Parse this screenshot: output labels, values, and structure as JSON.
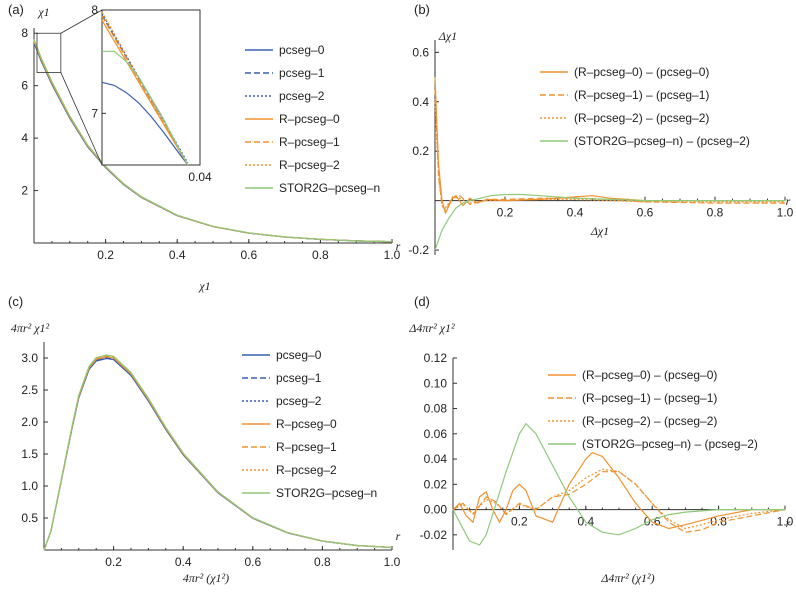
{
  "chart_data": [
    {
      "id": "a",
      "panel_label": "(a)",
      "type": "line",
      "ylabel": "χ1",
      "xlabel": "χ1",
      "xaxis_end_label": "r",
      "xlim": [
        0,
        1.0
      ],
      "ylim": [
        0,
        8.2
      ],
      "xticks": [
        "0.2",
        "0.4",
        "0.6",
        "0.8",
        "1.0"
      ],
      "yticks": [
        "2",
        "4",
        "6",
        "8"
      ],
      "series": [
        {
          "name": "pcseg–0",
          "color": "#3a5fb0",
          "dash": "solid"
        },
        {
          "name": "pcseg–1",
          "color": "#3a5fb0",
          "dash": "dashed"
        },
        {
          "name": "pcseg–2",
          "color": "#3a5fb0",
          "dash": "dotted"
        },
        {
          "name": "R–pcseg–0",
          "color": "#f0922e",
          "dash": "solid"
        },
        {
          "name": "R–pcseg–1",
          "color": "#f0922e",
          "dash": "dashed"
        },
        {
          "name": "R–pcseg–2",
          "color": "#f0922e",
          "dash": "dotted"
        },
        {
          "name": "STOR2G–pcseg–n",
          "color": "#8fc97a",
          "dash": "solid"
        }
      ],
      "curve": {
        "x": [
          0,
          0.02,
          0.05,
          0.1,
          0.15,
          0.2,
          0.25,
          0.3,
          0.4,
          0.5,
          0.6,
          0.7,
          0.8,
          0.9,
          1.0
        ],
        "y": [
          7.7,
          7.0,
          6.1,
          4.8,
          3.7,
          2.9,
          2.25,
          1.75,
          1.05,
          0.63,
          0.38,
          0.23,
          0.14,
          0.08,
          0.05
        ]
      },
      "inset": {
        "xlim": [
          0,
          0.04
        ],
        "ylim": [
          6.5,
          8.0
        ],
        "xticks": [
          "0.04"
        ],
        "yticks": [
          "7",
          "8"
        ],
        "lines": [
          {
            "series": "pcseg–0",
            "x": [
              0,
              0.005,
              0.01,
              0.015,
              0.02,
              0.025,
              0.03,
              0.035
            ],
            "y": [
              7.3,
              7.27,
              7.2,
              7.1,
              6.97,
              6.82,
              6.66,
              6.5
            ]
          },
          {
            "series": "pcseg–1",
            "x": [
              0,
              0.035
            ],
            "y": [
              7.95,
              6.5
            ]
          },
          {
            "series": "pcseg–2",
            "x": [
              0,
              0.035
            ],
            "y": [
              7.97,
              6.52
            ]
          },
          {
            "series": "R–pcseg–0",
            "x": [
              0,
              0.035
            ],
            "y": [
              7.9,
              6.5
            ]
          },
          {
            "series": "R–pcseg–1",
            "x": [
              0,
              0.035
            ],
            "y": [
              7.94,
              6.5
            ]
          },
          {
            "series": "R–pcseg–2",
            "x": [
              0,
              0.035
            ],
            "y": [
              7.98,
              6.5
            ]
          },
          {
            "series": "STOR2G–pcseg–n",
            "x": [
              0,
              0.005,
              0.01,
              0.015,
              0.02,
              0.025,
              0.03,
              0.035
            ],
            "y": [
              7.6,
              7.6,
              7.5,
              7.35,
              7.15,
              6.95,
              6.72,
              6.5
            ]
          }
        ]
      }
    },
    {
      "id": "b",
      "panel_label": "(b)",
      "type": "line",
      "ylabel": "Δχ1",
      "xlabel": "Δχ1",
      "xaxis_end_label": "r",
      "xlim": [
        0,
        1.0
      ],
      "ylim": [
        -0.22,
        0.65
      ],
      "xticks": [
        "0.2",
        "0.4",
        "0.6",
        "0.8",
        "1.0"
      ],
      "yticks": [
        "-0.2",
        "0.2",
        "0.4",
        "0.6"
      ],
      "series": [
        {
          "name": "(R–pcseg–0) – (pcseg–0)",
          "color": "#f0922e",
          "dash": "solid",
          "x": [
            0,
            0.01,
            0.02,
            0.03,
            0.04,
            0.05,
            0.06,
            0.08,
            0.1,
            0.12,
            0.15,
            0.2,
            0.3,
            0.4,
            0.45,
            0.5,
            0.6,
            0.8,
            1.0
          ],
          "y": [
            0.5,
            0.15,
            0.0,
            -0.05,
            -0.02,
            0.01,
            0.02,
            -0.02,
            0.01,
            -0.01,
            0.005,
            0.0,
            0.005,
            0.015,
            0.02,
            0.01,
            0.0,
            0.0,
            0.0
          ]
        },
        {
          "name": "(R–pcseg–1) – (pcseg–1)",
          "color": "#f0922e",
          "dash": "dashed",
          "x": [
            0,
            0.01,
            0.02,
            0.03,
            0.05,
            0.07,
            0.1,
            0.15,
            0.2,
            0.3,
            0.4,
            0.5,
            0.6,
            0.8,
            1.0
          ],
          "y": [
            0.45,
            0.1,
            -0.02,
            -0.04,
            0.01,
            0.02,
            -0.015,
            0.005,
            0.005,
            0.01,
            0.01,
            0.005,
            -0.005,
            -0.01,
            -0.01
          ]
        },
        {
          "name": "(R–pcseg–2) – (pcseg–2)",
          "color": "#f0922e",
          "dash": "dotted",
          "x": [
            0,
            0.01,
            0.02,
            0.03,
            0.05,
            0.07,
            0.1,
            0.15,
            0.2,
            0.3,
            0.4,
            0.5,
            0.6,
            0.8,
            1.0
          ],
          "y": [
            0.4,
            0.1,
            -0.02,
            -0.03,
            0.015,
            0.01,
            -0.01,
            0.0,
            0.0,
            0.005,
            0.005,
            0.0,
            -0.005,
            -0.005,
            -0.005
          ]
        },
        {
          "name": "(STOR2G–pcseg–n) – (pcseg–2)",
          "color": "#8fc97a",
          "dash": "solid",
          "x": [
            0,
            0.02,
            0.04,
            0.06,
            0.08,
            0.1,
            0.13,
            0.16,
            0.2,
            0.25,
            0.3,
            0.4,
            0.5,
            0.6,
            0.8,
            1.0
          ],
          "y": [
            -0.2,
            -0.12,
            -0.07,
            -0.03,
            -0.01,
            0.0,
            0.01,
            0.02,
            0.025,
            0.025,
            0.02,
            0.01,
            0.005,
            0.0,
            0.0,
            0.0
          ]
        }
      ]
    },
    {
      "id": "c",
      "panel_label": "(c)",
      "type": "line",
      "ylabel": "4πr² χ1²",
      "xlabel": "4πr² (χ1²)",
      "xaxis_end_label": "r",
      "xlim": [
        0,
        1.0
      ],
      "ylim": [
        0,
        3.25
      ],
      "xticks": [
        "0.2",
        "0.4",
        "0.6",
        "0.8",
        "1.0"
      ],
      "yticks": [
        "0.5",
        "1.0",
        "1.5",
        "2.0",
        "2.5",
        "3.0"
      ],
      "series": [
        {
          "name": "pcseg–0",
          "color": "#3a5fb0",
          "dash": "solid"
        },
        {
          "name": "pcseg–1",
          "color": "#3a5fb0",
          "dash": "dashed"
        },
        {
          "name": "pcseg–2",
          "color": "#3a5fb0",
          "dash": "dotted"
        },
        {
          "name": "R–pcseg–0",
          "color": "#f0922e",
          "dash": "solid"
        },
        {
          "name": "R–pcseg–1",
          "color": "#f0922e",
          "dash": "dashed"
        },
        {
          "name": "R–pcseg–2",
          "color": "#f0922e",
          "dash": "dotted"
        },
        {
          "name": "STOR2G–pcseg–n",
          "color": "#8fc97a",
          "dash": "solid"
        }
      ],
      "curve": {
        "x": [
          0,
          0.02,
          0.05,
          0.08,
          0.1,
          0.13,
          0.15,
          0.18,
          0.2,
          0.25,
          0.3,
          0.35,
          0.4,
          0.5,
          0.6,
          0.7,
          0.8,
          0.9,
          1.0
        ],
        "y": [
          0,
          0.3,
          1.1,
          1.9,
          2.4,
          2.85,
          2.98,
          3.02,
          3.0,
          2.75,
          2.35,
          1.9,
          1.5,
          0.9,
          0.5,
          0.27,
          0.14,
          0.07,
          0.04
        ]
      }
    },
    {
      "id": "d",
      "panel_label": "(d)",
      "type": "line",
      "ylabel": "Δ4πr² χ1²",
      "xlabel": "Δ4πr² (χ1²)",
      "xaxis_end_label": "r",
      "xlim": [
        0,
        1.0
      ],
      "ylim": [
        -0.032,
        0.12
      ],
      "xticks": [
        "0.2",
        "0.4",
        "0.6",
        "0.8",
        "1.0"
      ],
      "yticks": [
        "-0.02",
        "0.00",
        "0.02",
        "0.04",
        "0.06",
        "0.08",
        "0.10",
        "0.12"
      ],
      "series": [
        {
          "name": "(R–pcseg–0) – (pcseg–0)",
          "color": "#f0922e",
          "dash": "solid",
          "x": [
            0,
            0.02,
            0.04,
            0.06,
            0.08,
            0.1,
            0.12,
            0.14,
            0.16,
            0.18,
            0.2,
            0.22,
            0.25,
            0.3,
            0.35,
            0.4,
            0.42,
            0.45,
            0.5,
            0.55,
            0.6,
            0.65,
            0.7,
            0.8,
            0.9,
            1.0
          ],
          "y": [
            0,
            0.005,
            -0.005,
            -0.01,
            0.01,
            0.014,
            0.0,
            -0.01,
            0.0,
            0.015,
            0.02,
            0.015,
            -0.005,
            -0.01,
            0.02,
            0.04,
            0.045,
            0.042,
            0.025,
            0.005,
            -0.01,
            -0.015,
            -0.012,
            -0.005,
            0.0,
            0.0
          ]
        },
        {
          "name": "(R–pcseg–1) – (pcseg–1)",
          "color": "#f0922e",
          "dash": "dashed",
          "x": [
            0,
            0.03,
            0.06,
            0.1,
            0.13,
            0.16,
            0.2,
            0.25,
            0.3,
            0.35,
            0.4,
            0.45,
            0.5,
            0.55,
            0.6,
            0.65,
            0.7,
            0.75,
            0.8,
            0.9,
            1.0
          ],
          "y": [
            0,
            0.005,
            -0.004,
            0.01,
            0.006,
            -0.004,
            0.005,
            0.0,
            0.01,
            0.012,
            0.02,
            0.03,
            0.03,
            0.02,
            0.005,
            -0.01,
            -0.018,
            -0.016,
            -0.01,
            -0.005,
            0.0
          ]
        },
        {
          "name": "(R–pcseg–2) – (pcseg–2)",
          "color": "#f0922e",
          "dash": "dotted",
          "x": [
            0,
            0.03,
            0.06,
            0.1,
            0.13,
            0.16,
            0.2,
            0.25,
            0.3,
            0.35,
            0.4,
            0.45,
            0.5,
            0.55,
            0.6,
            0.65,
            0.7,
            0.75,
            0.8,
            0.9,
            1.0
          ],
          "y": [
            0,
            0.004,
            -0.003,
            0.008,
            0.005,
            -0.003,
            0.004,
            0.0,
            0.01,
            0.015,
            0.025,
            0.032,
            0.03,
            0.02,
            0.005,
            -0.008,
            -0.015,
            -0.012,
            -0.008,
            -0.003,
            0.0
          ]
        },
        {
          "name": "(STOR2G–pcseg–n) – (pcseg–2)",
          "color": "#8fc97a",
          "dash": "solid",
          "x": [
            0,
            0.02,
            0.05,
            0.08,
            0.1,
            0.13,
            0.16,
            0.2,
            0.22,
            0.25,
            0.3,
            0.35,
            0.4,
            0.45,
            0.5,
            0.55,
            0.6,
            0.65,
            0.7,
            0.8,
            0.9,
            1.0
          ],
          "y": [
            0,
            -0.01,
            -0.025,
            -0.028,
            -0.02,
            0.005,
            0.03,
            0.06,
            0.068,
            0.06,
            0.035,
            0.01,
            -0.01,
            -0.018,
            -0.02,
            -0.015,
            -0.008,
            -0.004,
            -0.002,
            0.0,
            0.0,
            0.0
          ]
        }
      ]
    }
  ]
}
